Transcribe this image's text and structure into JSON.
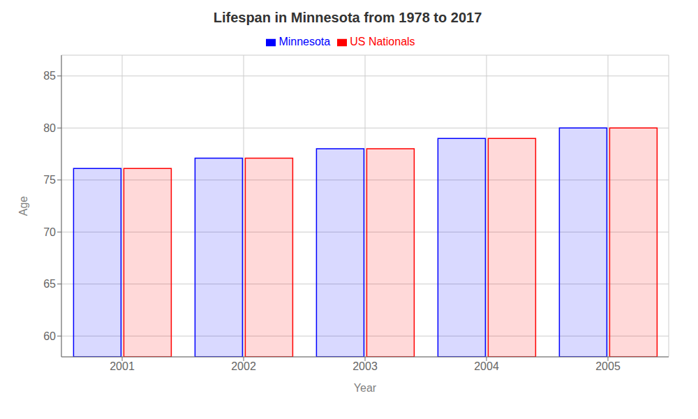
{
  "chart_data": {
    "type": "bar",
    "title": "Lifespan in Minnesota from 1978 to 2017",
    "x_label": "Year",
    "y_label": "Age",
    "categories": [
      "2001",
      "2002",
      "2003",
      "2004",
      "2005"
    ],
    "series": [
      {
        "name": "Minnesota",
        "color": "#0000ff",
        "values": [
          76.1,
          77.1,
          78.0,
          79.0,
          80.0
        ]
      },
      {
        "name": "US Nationals",
        "color": "#ff0000",
        "values": [
          76.1,
          77.1,
          78.0,
          79.0,
          80.0
        ]
      }
    ],
    "ylim": [
      58,
      87
    ],
    "yticks": [
      60,
      65,
      70,
      75,
      80,
      85
    ],
    "grid": true,
    "legend": "top"
  }
}
